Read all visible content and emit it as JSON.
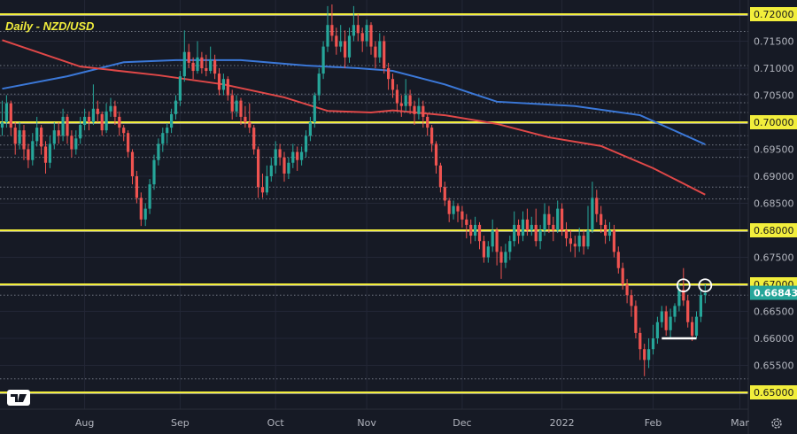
{
  "title": "Daily - NZD/USD",
  "colors": {
    "background": "#161a25",
    "up": "#26a69a",
    "down": "#ef5350",
    "level": "#f2ee3c",
    "ma_blue": "#3b78d8",
    "ma_red": "#e04848",
    "axis_text": "#b2b5be",
    "grid": "#232736",
    "current_price_bg": "#26a69a"
  },
  "chart_data": {
    "type": "candlestick",
    "title": "Daily - NZD/USD",
    "ylim": [
      0.6465,
      0.7225
    ],
    "y_ticks": [
      "0.72000",
      "0.71500",
      "0.71000",
      "0.70500",
      "0.70000",
      "0.69500",
      "0.69000",
      "0.68500",
      "0.68000",
      "0.67500",
      "0.67000",
      "0.66500",
      "0.66000",
      "0.65500",
      "0.65000"
    ],
    "x_ticks": [
      {
        "label": "Aug",
        "index": 19
      },
      {
        "label": "Sep",
        "index": 41
      },
      {
        "label": "Oct",
        "index": 63
      },
      {
        "label": "Nov",
        "index": 84
      },
      {
        "label": "Dec",
        "index": 106
      },
      {
        "label": "2022",
        "index": 129
      },
      {
        "label": "Feb",
        "index": 150
      },
      {
        "label": "Mar",
        "index": 170
      }
    ],
    "current_price": "0.66843",
    "highlighted_levels": [
      "0.72000",
      "0.70000",
      "0.68000",
      "0.67000",
      "0.65000"
    ],
    "dotted_levels": [
      0.7168,
      0.7105,
      0.7052,
      0.7036,
      0.7018,
      0.6975,
      0.6958,
      0.6935,
      0.688,
      0.6858,
      0.668,
      0.6525
    ],
    "support_line": {
      "value": 0.66,
      "from_index": 152,
      "to_index": 160
    },
    "circled_highs": [
      {
        "index": 157,
        "value": 0.6698
      },
      {
        "index": 162,
        "value": 0.6698
      }
    ],
    "grid": true,
    "candles": [
      [
        0.699,
        0.704,
        0.6975,
        0.7
      ],
      [
        0.7,
        0.705,
        0.699,
        0.7035
      ],
      [
        0.7035,
        0.704,
        0.6975,
        0.699
      ],
      [
        0.699,
        0.7,
        0.694,
        0.696
      ],
      [
        0.696,
        0.7,
        0.695,
        0.6985
      ],
      [
        0.6985,
        0.6995,
        0.693,
        0.695
      ],
      [
        0.695,
        0.696,
        0.6915,
        0.693
      ],
      [
        0.693,
        0.698,
        0.692,
        0.6965
      ],
      [
        0.6965,
        0.701,
        0.6955,
        0.699
      ],
      [
        0.699,
        0.6995,
        0.694,
        0.6955
      ],
      [
        0.6955,
        0.6965,
        0.6905,
        0.6925
      ],
      [
        0.6925,
        0.6975,
        0.6915,
        0.696
      ],
      [
        0.696,
        0.7,
        0.695,
        0.6985
      ],
      [
        0.6985,
        0.7,
        0.696,
        0.6975
      ],
      [
        0.6975,
        0.7025,
        0.6965,
        0.701
      ],
      [
        0.701,
        0.7015,
        0.696,
        0.6975
      ],
      [
        0.6975,
        0.6985,
        0.6935,
        0.695
      ],
      [
        0.695,
        0.6985,
        0.694,
        0.697
      ],
      [
        0.697,
        0.701,
        0.696,
        0.6995
      ],
      [
        0.6995,
        0.7025,
        0.6985,
        0.701
      ],
      [
        0.701,
        0.702,
        0.6985,
        0.7
      ],
      [
        0.7,
        0.707,
        0.6995,
        0.7025
      ],
      [
        0.7025,
        0.704,
        0.7,
        0.7015
      ],
      [
        0.7015,
        0.702,
        0.6975,
        0.6985
      ],
      [
        0.6985,
        0.7035,
        0.698,
        0.702
      ],
      [
        0.702,
        0.7045,
        0.701,
        0.703
      ],
      [
        0.703,
        0.704,
        0.6995,
        0.701
      ],
      [
        0.701,
        0.702,
        0.6975,
        0.699
      ],
      [
        0.699,
        0.6995,
        0.6965,
        0.698
      ],
      [
        0.698,
        0.6985,
        0.6935,
        0.6945
      ],
      [
        0.6945,
        0.695,
        0.6885,
        0.69
      ],
      [
        0.69,
        0.691,
        0.685,
        0.686
      ],
      [
        0.686,
        0.687,
        0.6808,
        0.682
      ],
      [
        0.682,
        0.685,
        0.6808,
        0.684
      ],
      [
        0.684,
        0.6895,
        0.683,
        0.6885
      ],
      [
        0.6885,
        0.694,
        0.6875,
        0.693
      ],
      [
        0.693,
        0.697,
        0.692,
        0.696
      ],
      [
        0.696,
        0.699,
        0.6945,
        0.698
      ],
      [
        0.698,
        0.6998,
        0.696,
        0.699
      ],
      [
        0.699,
        0.7025,
        0.698,
        0.7015
      ],
      [
        0.7015,
        0.705,
        0.7005,
        0.704
      ],
      [
        0.704,
        0.7095,
        0.703,
        0.7085
      ],
      [
        0.7085,
        0.717,
        0.7075,
        0.713
      ],
      [
        0.713,
        0.7145,
        0.71,
        0.711
      ],
      [
        0.711,
        0.712,
        0.708,
        0.7095
      ],
      [
        0.7095,
        0.715,
        0.709,
        0.712
      ],
      [
        0.712,
        0.713,
        0.709,
        0.71
      ],
      [
        0.71,
        0.7125,
        0.7085,
        0.7095
      ],
      [
        0.7095,
        0.714,
        0.709,
        0.7115
      ],
      [
        0.7115,
        0.7125,
        0.708,
        0.709
      ],
      [
        0.709,
        0.71,
        0.705,
        0.706
      ],
      [
        0.706,
        0.709,
        0.705,
        0.708
      ],
      [
        0.708,
        0.7085,
        0.704,
        0.705
      ],
      [
        0.705,
        0.706,
        0.7005,
        0.702
      ],
      [
        0.702,
        0.705,
        0.701,
        0.704
      ],
      [
        0.704,
        0.7045,
        0.6995,
        0.701
      ],
      [
        0.701,
        0.703,
        0.699,
        0.7
      ],
      [
        0.7,
        0.7035,
        0.698,
        0.699
      ],
      [
        0.699,
        0.6995,
        0.694,
        0.695
      ],
      [
        0.695,
        0.6955,
        0.686,
        0.688
      ],
      [
        0.688,
        0.6905,
        0.686,
        0.687
      ],
      [
        0.687,
        0.692,
        0.6865,
        0.69
      ],
      [
        0.69,
        0.6935,
        0.689,
        0.692
      ],
      [
        0.692,
        0.6965,
        0.6905,
        0.695
      ],
      [
        0.695,
        0.696,
        0.692,
        0.6935
      ],
      [
        0.6935,
        0.6945,
        0.689,
        0.6905
      ],
      [
        0.6905,
        0.6935,
        0.6895,
        0.6925
      ],
      [
        0.6925,
        0.696,
        0.6915,
        0.6945
      ],
      [
        0.6945,
        0.6955,
        0.691,
        0.693
      ],
      [
        0.693,
        0.6955,
        0.692,
        0.6945
      ],
      [
        0.6945,
        0.6985,
        0.6935,
        0.6975
      ],
      [
        0.6975,
        0.701,
        0.6965,
        0.7
      ],
      [
        0.7,
        0.7055,
        0.699,
        0.705
      ],
      [
        0.705,
        0.71,
        0.704,
        0.709
      ],
      [
        0.709,
        0.715,
        0.708,
        0.714
      ],
      [
        0.714,
        0.7215,
        0.713,
        0.718
      ],
      [
        0.718,
        0.7218,
        0.715,
        0.716
      ],
      [
        0.716,
        0.7175,
        0.7125,
        0.714
      ],
      [
        0.714,
        0.718,
        0.713,
        0.715
      ],
      [
        0.715,
        0.717,
        0.71,
        0.712
      ],
      [
        0.712,
        0.7175,
        0.711,
        0.716
      ],
      [
        0.716,
        0.7215,
        0.715,
        0.718
      ],
      [
        0.718,
        0.72,
        0.715,
        0.7165
      ],
      [
        0.7165,
        0.7175,
        0.713,
        0.715
      ],
      [
        0.715,
        0.719,
        0.714,
        0.718
      ],
      [
        0.718,
        0.7185,
        0.7125,
        0.714
      ],
      [
        0.714,
        0.715,
        0.71,
        0.712
      ],
      [
        0.712,
        0.7165,
        0.711,
        0.715
      ],
      [
        0.715,
        0.716,
        0.709,
        0.71
      ],
      [
        0.71,
        0.711,
        0.706,
        0.708
      ],
      [
        0.708,
        0.709,
        0.7045,
        0.706
      ],
      [
        0.706,
        0.707,
        0.702,
        0.7035
      ],
      [
        0.7035,
        0.705,
        0.701,
        0.703
      ],
      [
        0.703,
        0.708,
        0.702,
        0.705
      ],
      [
        0.705,
        0.706,
        0.7015,
        0.703
      ],
      [
        0.703,
        0.704,
        0.6995,
        0.7015
      ],
      [
        0.7015,
        0.7045,
        0.7005,
        0.703
      ],
      [
        0.703,
        0.704,
        0.699,
        0.701
      ],
      [
        0.701,
        0.7015,
        0.6975,
        0.699
      ],
      [
        0.699,
        0.6995,
        0.6945,
        0.696
      ],
      [
        0.696,
        0.6965,
        0.6905,
        0.692
      ],
      [
        0.692,
        0.6925,
        0.687,
        0.688
      ],
      [
        0.688,
        0.689,
        0.6845,
        0.6855
      ],
      [
        0.6855,
        0.686,
        0.6815,
        0.683
      ],
      [
        0.683,
        0.6855,
        0.682,
        0.6845
      ],
      [
        0.6845,
        0.685,
        0.6815,
        0.6835
      ],
      [
        0.6835,
        0.6845,
        0.6805,
        0.682
      ],
      [
        0.682,
        0.683,
        0.6785,
        0.681
      ],
      [
        0.681,
        0.682,
        0.6775,
        0.679
      ],
      [
        0.679,
        0.6825,
        0.678,
        0.681
      ],
      [
        0.681,
        0.6815,
        0.6765,
        0.678
      ],
      [
        0.678,
        0.679,
        0.674,
        0.675
      ],
      [
        0.675,
        0.678,
        0.674,
        0.677
      ],
      [
        0.677,
        0.682,
        0.676,
        0.68
      ],
      [
        0.68,
        0.6805,
        0.6735,
        0.676
      ],
      [
        0.676,
        0.677,
        0.671,
        0.674
      ],
      [
        0.674,
        0.6775,
        0.673,
        0.676
      ],
      [
        0.676,
        0.679,
        0.6745,
        0.678
      ],
      [
        0.678,
        0.6835,
        0.677,
        0.681
      ],
      [
        0.681,
        0.682,
        0.6775,
        0.679
      ],
      [
        0.679,
        0.6835,
        0.678,
        0.682
      ],
      [
        0.682,
        0.684,
        0.679,
        0.68
      ],
      [
        0.68,
        0.6825,
        0.679,
        0.681
      ],
      [
        0.681,
        0.684,
        0.677,
        0.678
      ],
      [
        0.678,
        0.681,
        0.6765,
        0.68
      ],
      [
        0.68,
        0.685,
        0.679,
        0.683
      ],
      [
        0.683,
        0.6845,
        0.6795,
        0.681
      ],
      [
        0.681,
        0.6825,
        0.678,
        0.68
      ],
      [
        0.68,
        0.6855,
        0.6795,
        0.684
      ],
      [
        0.684,
        0.685,
        0.679,
        0.68
      ],
      [
        0.68,
        0.6815,
        0.677,
        0.6785
      ],
      [
        0.6785,
        0.68,
        0.676,
        0.6775
      ],
      [
        0.6775,
        0.679,
        0.675,
        0.677
      ],
      [
        0.677,
        0.6805,
        0.676,
        0.679
      ],
      [
        0.679,
        0.68,
        0.6755,
        0.677
      ],
      [
        0.677,
        0.6845,
        0.6765,
        0.68
      ],
      [
        0.68,
        0.689,
        0.6795,
        0.686
      ],
      [
        0.686,
        0.6875,
        0.6815,
        0.683
      ],
      [
        0.683,
        0.6845,
        0.6795,
        0.681
      ],
      [
        0.681,
        0.682,
        0.6775,
        0.679
      ],
      [
        0.679,
        0.6815,
        0.678,
        0.68
      ],
      [
        0.68,
        0.681,
        0.675,
        0.676
      ],
      [
        0.676,
        0.677,
        0.672,
        0.673
      ],
      [
        0.673,
        0.674,
        0.669,
        0.67
      ],
      [
        0.67,
        0.671,
        0.6665,
        0.668
      ],
      [
        0.668,
        0.669,
        0.664,
        0.666
      ],
      [
        0.666,
        0.667,
        0.66,
        0.661
      ],
      [
        0.661,
        0.662,
        0.656,
        0.658
      ],
      [
        0.658,
        0.659,
        0.653,
        0.656
      ],
      [
        0.656,
        0.66,
        0.6545,
        0.658
      ],
      [
        0.658,
        0.6625,
        0.657,
        0.66
      ],
      [
        0.66,
        0.664,
        0.659,
        0.663
      ],
      [
        0.663,
        0.666,
        0.662,
        0.665
      ],
      [
        0.665,
        0.666,
        0.6605,
        0.6615
      ],
      [
        0.6615,
        0.6655,
        0.66,
        0.664
      ],
      [
        0.664,
        0.6665,
        0.663,
        0.666
      ],
      [
        0.666,
        0.67,
        0.665,
        0.669
      ],
      [
        0.669,
        0.673,
        0.666,
        0.667
      ],
      [
        0.667,
        0.668,
        0.662,
        0.663
      ],
      [
        0.663,
        0.664,
        0.6595,
        0.6605
      ],
      [
        0.6605,
        0.665,
        0.66,
        0.664
      ],
      [
        0.664,
        0.669,
        0.663,
        0.668
      ],
      [
        0.668,
        0.67,
        0.6665,
        0.6684
      ]
    ],
    "moving_averages": [
      {
        "color": "#3b78d8",
        "points": [
          [
            0,
            0.7062
          ],
          [
            15,
            0.7085
          ],
          [
            28,
            0.7111
          ],
          [
            40,
            0.7115
          ],
          [
            55,
            0.7115
          ],
          [
            70,
            0.7105
          ],
          [
            82,
            0.71
          ],
          [
            90,
            0.7095
          ],
          [
            102,
            0.707
          ],
          [
            114,
            0.7038
          ],
          [
            132,
            0.703
          ],
          [
            147,
            0.7013
          ],
          [
            162,
            0.6959
          ]
        ]
      },
      {
        "color": "#e04848",
        "points": [
          [
            0,
            0.7152
          ],
          [
            18,
            0.7103
          ],
          [
            36,
            0.7087
          ],
          [
            51,
            0.707
          ],
          [
            65,
            0.7046
          ],
          [
            75,
            0.7021
          ],
          [
            85,
            0.7018
          ],
          [
            90,
            0.7022
          ],
          [
            102,
            0.7013
          ],
          [
            114,
            0.6997
          ],
          [
            126,
            0.6972
          ],
          [
            138,
            0.6956
          ],
          [
            150,
            0.6915
          ],
          [
            162,
            0.6866
          ]
        ]
      }
    ]
  }
}
